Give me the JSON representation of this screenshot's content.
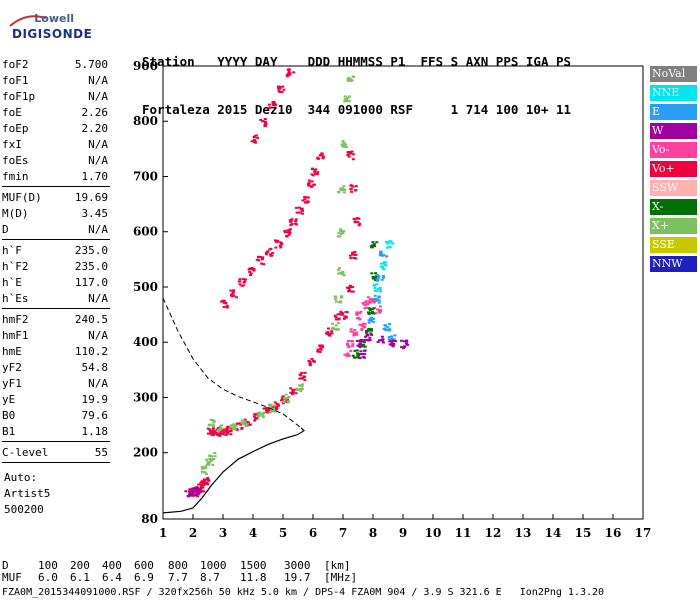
{
  "logo": {
    "line1": "Lowell",
    "line2": "DIGISONDE"
  },
  "header": {
    "labels": [
      "Station",
      "YYYY",
      "DAY",
      "DDD",
      "HHMMSS",
      "P1",
      "FFS",
      "S",
      "AXN",
      "PPS",
      "IGA",
      "PS"
    ],
    "values": [
      "Fortaleza",
      "2015",
      "Dez10",
      "344",
      "091000",
      "RSF",
      "",
      "1",
      "714",
      "100",
      "10+",
      "11"
    ]
  },
  "params": {
    "group1": [
      {
        "label": "foF2",
        "value": "5.700"
      },
      {
        "label": "foF1",
        "value": "N/A"
      },
      {
        "label": "foF1p",
        "value": "N/A"
      },
      {
        "label": "foE",
        "value": "2.26"
      },
      {
        "label": "foEp",
        "value": "2.20"
      },
      {
        "label": "fxI",
        "value": "N/A"
      },
      {
        "label": "foEs",
        "value": "N/A"
      },
      {
        "label": "fmin",
        "value": "1.70"
      }
    ],
    "group2": [
      {
        "label": "MUF(D)",
        "value": "19.69"
      },
      {
        "label": "M(D)",
        "value": "3.45"
      },
      {
        "label": "D",
        "value": "N/A"
      }
    ],
    "group3": [
      {
        "label": "h`F",
        "value": "235.0"
      },
      {
        "label": "h`F2",
        "value": "235.0"
      },
      {
        "label": "h`E",
        "value": "117.0"
      },
      {
        "label": "h`Es",
        "value": "N/A"
      }
    ],
    "group4": [
      {
        "label": "hmF2",
        "value": "240.5"
      },
      {
        "label": "hmF1",
        "value": "N/A"
      },
      {
        "label": "hmE",
        "value": "110.2"
      },
      {
        "label": "yF2",
        "value": "54.8"
      },
      {
        "label": "yF1",
        "value": "N/A"
      },
      {
        "label": "yE",
        "value": "19.9"
      },
      {
        "label": "B0",
        "value": "79.6"
      },
      {
        "label": "B1",
        "value": "1.18"
      }
    ],
    "group5": [
      {
        "label": "C-level",
        "value": "55"
      }
    ],
    "auto_lines": [
      "Auto:",
      "Artist5",
      "500200"
    ]
  },
  "legend": [
    {
      "label": "NoVal",
      "color": "#808080"
    },
    {
      "label": "NNE",
      "color": "#00e5ee"
    },
    {
      "label": "E",
      "color": "#2a9df4"
    },
    {
      "label": "W",
      "color": "#a000a0"
    },
    {
      "label": "Vo-",
      "color": "#ff40a0"
    },
    {
      "label": "Vo+",
      "color": "#f00040"
    },
    {
      "label": "SSW",
      "color": "#ffb0b0"
    },
    {
      "label": "X-",
      "color": "#007000"
    },
    {
      "label": "X+",
      "color": "#7cc060"
    },
    {
      "label": "SSE",
      "color": "#c8c800"
    },
    {
      "label": "NNW",
      "color": "#2020c0"
    }
  ],
  "footer": {
    "row1_label": "D",
    "row1_values": [
      "100",
      "200",
      "400",
      "600",
      "800",
      "1000",
      "1500",
      "3000",
      "[km]"
    ],
    "row2_label": "MUF",
    "row2_values": [
      "6.0",
      "6.1",
      "6.4",
      "6.9",
      "7.7",
      "8.7",
      "11.8",
      "19.7",
      "[MHz]"
    ],
    "file_line": "FZA0M_2015344091000.RSF / 320fx256h 50 kHz 5.0 km / DPS-4 FZA0M 904 / 3.9 S 321.6 E   Ion2Png 1.3.20"
  },
  "chart_data": {
    "type": "scatter",
    "xlim": [
      1,
      17
    ],
    "ylim": [
      80,
      900
    ],
    "x_ticks": [
      1,
      2,
      3,
      4,
      5,
      6,
      7,
      8,
      9,
      10,
      11,
      12,
      13,
      14,
      15,
      16,
      17
    ],
    "y_ticks": [
      80,
      200,
      300,
      400,
      500,
      600,
      700,
      800,
      900
    ],
    "profile_solid": [
      [
        1.0,
        91
      ],
      [
        1.6,
        94
      ],
      [
        2.0,
        100
      ],
      [
        2.3,
        118
      ],
      [
        2.6,
        140
      ],
      [
        3.0,
        165
      ],
      [
        3.5,
        188
      ],
      [
        4.0,
        202
      ],
      [
        4.5,
        215
      ],
      [
        5.0,
        225
      ],
      [
        5.5,
        233
      ],
      [
        5.7,
        240
      ],
      [
        5.6,
        245
      ]
    ],
    "profile_dashed": [
      [
        1.0,
        480
      ],
      [
        1.5,
        420
      ],
      [
        2.0,
        370
      ],
      [
        2.5,
        335
      ],
      [
        3.0,
        315
      ],
      [
        3.5,
        302
      ],
      [
        4.0,
        292
      ],
      [
        4.5,
        282
      ],
      [
        5.0,
        270
      ],
      [
        5.3,
        258
      ],
      [
        5.6,
        245
      ]
    ],
    "clusters": [
      {
        "color": "#f00040",
        "points": [
          [
            2.55,
            240
          ],
          [
            2.7,
            240
          ],
          [
            2.85,
            238
          ],
          [
            3.0,
            239
          ],
          [
            3.2,
            242
          ],
          [
            3.5,
            250
          ],
          [
            3.8,
            258
          ],
          [
            4.1,
            266
          ],
          [
            4.4,
            276
          ],
          [
            4.7,
            286
          ],
          [
            5.0,
            298
          ],
          [
            5.3,
            315
          ],
          [
            5.6,
            340
          ],
          [
            5.9,
            365
          ],
          [
            6.2,
            390
          ],
          [
            6.5,
            420
          ],
          [
            6.8,
            450
          ]
        ]
      },
      {
        "color": "#7cc060",
        "points": [
          [
            2.6,
            255
          ],
          [
            2.9,
            245
          ],
          [
            3.3,
            248
          ],
          [
            3.7,
            256
          ],
          [
            4.2,
            270
          ],
          [
            4.6,
            282
          ],
          [
            5.1,
            300
          ],
          [
            5.5,
            320
          ],
          [
            2.3,
            170
          ],
          [
            2.5,
            185
          ],
          [
            2.6,
            195
          ]
        ]
      },
      {
        "color": "#f00040",
        "points": [
          [
            1.9,
            128
          ],
          [
            2.0,
            130
          ],
          [
            2.1,
            134
          ],
          [
            2.2,
            138
          ],
          [
            2.3,
            144
          ],
          [
            2.4,
            150
          ]
        ]
      },
      {
        "color": "#a000a0",
        "points": [
          [
            1.8,
            128
          ],
          [
            1.95,
            131
          ],
          [
            2.15,
            136
          ]
        ]
      },
      {
        "color": "#f00040",
        "points": [
          [
            3.0,
            470
          ],
          [
            3.3,
            490
          ],
          [
            3.6,
            510
          ],
          [
            3.9,
            530
          ],
          [
            4.2,
            550
          ],
          [
            4.5,
            565
          ],
          [
            4.8,
            580
          ],
          [
            5.1,
            600
          ],
          [
            5.3,
            620
          ],
          [
            5.5,
            640
          ],
          [
            5.7,
            660
          ],
          [
            5.9,
            690
          ],
          [
            6.0,
            710
          ],
          [
            6.2,
            740
          ]
        ]
      },
      {
        "color": "#f00040",
        "points": [
          [
            4.0,
            770
          ],
          [
            4.3,
            800
          ],
          [
            4.6,
            830
          ],
          [
            4.9,
            860
          ],
          [
            5.2,
            890
          ]
        ]
      },
      {
        "color": "#7cc060",
        "points": [
          [
            6.7,
            430
          ],
          [
            6.8,
            480
          ],
          [
            6.9,
            530
          ],
          [
            6.9,
            600
          ],
          [
            6.9,
            680
          ],
          [
            7.0,
            760
          ],
          [
            7.1,
            840
          ],
          [
            7.2,
            880
          ]
        ]
      },
      {
        "color": "#ff40a0",
        "points": [
          [
            7.1,
            380
          ],
          [
            7.3,
            420
          ],
          [
            7.5,
            450
          ],
          [
            7.7,
            470
          ],
          [
            7.9,
            480
          ],
          [
            8.1,
            460
          ],
          [
            7.6,
            430
          ],
          [
            7.2,
            400
          ]
        ]
      },
      {
        "color": "#f00040",
        "points": [
          [
            7.0,
            450
          ],
          [
            7.2,
            500
          ],
          [
            7.3,
            560
          ],
          [
            7.4,
            620
          ],
          [
            7.3,
            680
          ],
          [
            7.2,
            740
          ]
        ]
      },
      {
        "color": "#007000",
        "points": [
          [
            7.4,
            380
          ],
          [
            7.6,
            400
          ],
          [
            7.8,
            420
          ],
          [
            7.9,
            460
          ],
          [
            8.0,
            520
          ],
          [
            8.0,
            580
          ]
        ]
      },
      {
        "color": "#2a9df4",
        "points": [
          [
            7.9,
            440
          ],
          [
            8.1,
            480
          ],
          [
            8.2,
            520
          ],
          [
            8.3,
            560
          ],
          [
            8.4,
            430
          ],
          [
            8.6,
            410
          ]
        ]
      },
      {
        "color": "#a000a0",
        "points": [
          [
            7.5,
            400
          ],
          [
            7.8,
            410
          ],
          [
            8.2,
            405
          ],
          [
            8.6,
            400
          ],
          [
            9.0,
            398
          ],
          [
            7.6,
            380
          ]
        ]
      },
      {
        "color": "#00e5ee",
        "points": [
          [
            8.1,
            500
          ],
          [
            8.3,
            540
          ],
          [
            8.5,
            580
          ]
        ]
      }
    ]
  }
}
